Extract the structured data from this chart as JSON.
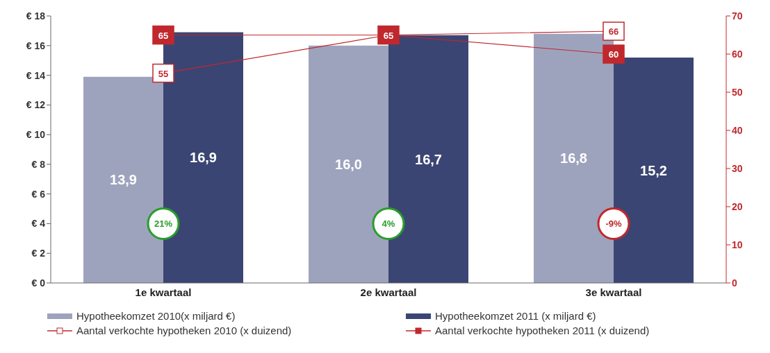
{
  "chart_data": {
    "type": "bar",
    "categories": [
      "1e kwartaal",
      "2e kwartaal",
      "3e kwartaal"
    ],
    "series": [
      {
        "name": "Hypotheekomzet 2010(x miljard €)",
        "color": "#9ea3bd",
        "values": [
          13.9,
          16.0,
          16.8
        ],
        "value_labels": [
          "13,9",
          "16,0",
          "16,8"
        ]
      },
      {
        "name": "Hypotheekomzet 2011 (x miljard €)",
        "color": "#3b4573",
        "values": [
          16.9,
          16.7,
          15.2
        ],
        "value_labels": [
          "16,9",
          "16,7",
          "15,2"
        ]
      },
      {
        "name": "Aantal verkochte hypotheken 2010 (x duizend)",
        "type": "line",
        "axis": "y2",
        "color": "#c0282d",
        "marker": "square",
        "values": [
          55,
          65,
          66
        ],
        "value_labels": [
          "55",
          null,
          "66"
        ]
      },
      {
        "name": "Aantal verkochte hypotheken 2011 (x duizend)",
        "type": "line",
        "axis": "y2",
        "color": "#c0282d",
        "marker": "square",
        "values": [
          65,
          65,
          60
        ],
        "data_labels": true
      }
    ],
    "ylim": [
      0,
      18
    ],
    "yticks": [
      {
        "value": 0,
        "label": "€ 0"
      },
      {
        "value": 2,
        "label": "€ 2"
      },
      {
        "value": 4,
        "label": "€ 4"
      },
      {
        "value": 6,
        "label": "€ 6"
      },
      {
        "value": 8,
        "label": "€ 8"
      },
      {
        "value": 10,
        "label": "€ 10"
      },
      {
        "value": 12,
        "label": "€ 12"
      },
      {
        "value": 14,
        "label": "€ 14"
      },
      {
        "value": 16,
        "label": "€ 16"
      },
      {
        "value": 18,
        "label": "€ 18"
      }
    ],
    "y2lim": [
      0,
      70
    ],
    "y2ticks": [
      0,
      10,
      20,
      30,
      40,
      50,
      60,
      70
    ],
    "annotations": [
      {
        "text": "21%",
        "x": "1e kwartaal",
        "y": 4
      },
      {
        "text": "4%",
        "x": "2e kwartaal",
        "y": 4
      },
      {
        "text": "-9%",
        "x": "3e kwartaal",
        "y": 4
      }
    ],
    "legend": "bottom"
  }
}
